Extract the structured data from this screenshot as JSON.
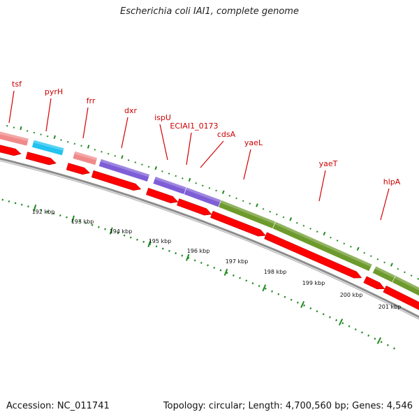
{
  "title": "Escherichia coli IAI1, complete genome",
  "footer": {
    "accession": "Accession: NC_011741",
    "topology": "Topology: circular; Length: 4,700,560 bp; Genes: 4,546"
  },
  "colors": {
    "cds_arrow": "#ff0000",
    "label_line": "#d40000",
    "tick_green": "#1f8a1f",
    "backbone": "#6d6d6d",
    "pink": "#f08a8a",
    "cyan": "#22c3f0",
    "purple": "#7e5ed6",
    "olive": "#6d9a2c"
  },
  "ruler": {
    "labels": [
      "192 kbp",
      "193 kbp",
      "194 kbp",
      "195 kbp",
      "196 kbp",
      "197 kbp",
      "198 kbp",
      "199 kbp",
      "200 kbp",
      "201 kbp"
    ]
  },
  "genes": [
    {
      "name": "tsf",
      "color": "pink"
    },
    {
      "name": "pyrH",
      "color": "cyan"
    },
    {
      "name": "frr",
      "color": "pink"
    },
    {
      "name": "dxr",
      "color": "purple"
    },
    {
      "name": "ispU",
      "color": "purple"
    },
    {
      "name": "ECIAI1_0173",
      "color": "purple"
    },
    {
      "name": "cdsA",
      "color": "olive"
    },
    {
      "name": "yaeL",
      "color": "olive"
    },
    {
      "name": "yaeT",
      "color": "olive"
    },
    {
      "name": "hlpA",
      "color": "olive"
    }
  ]
}
